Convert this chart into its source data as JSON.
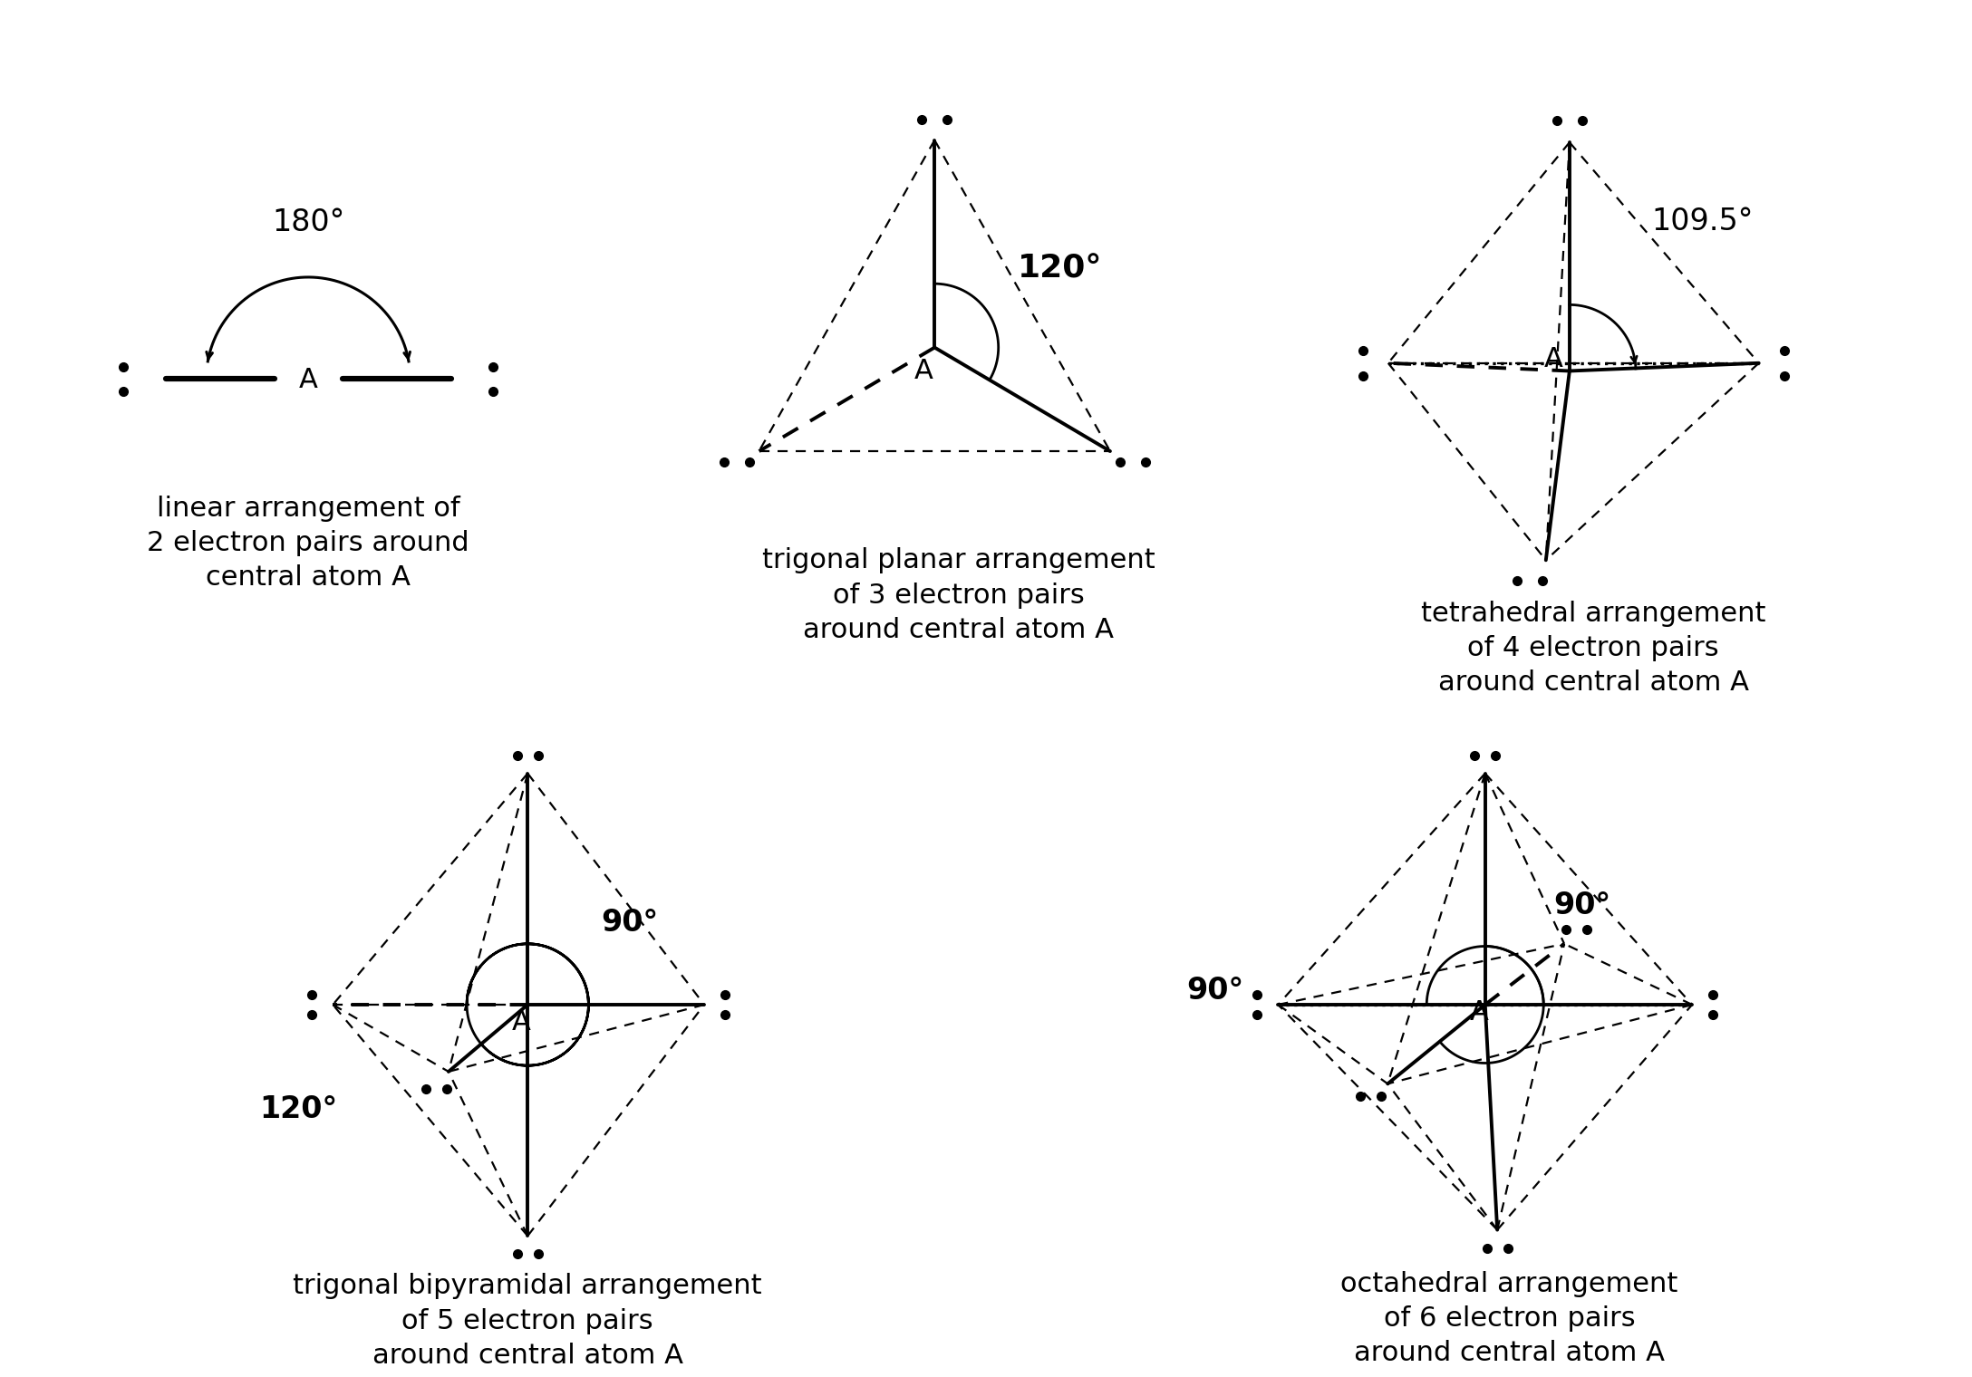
{
  "bg_color": "#ffffff",
  "line_color": "#000000",
  "dot_ms": 7,
  "bond_lw": 2.8,
  "dashed_lw": 1.6,
  "label1": "linear arrangement of\n2 electron pairs around\ncentral atom A",
  "label2": "trigonal planar arrangement\nof 3 electron pairs\naround central atom A",
  "label3": "tetrahedral arrangement\nof 4 electron pairs\naround central atom A",
  "label4": "trigonal bipyramidal arrangement\nof 5 electron pairs\naround central atom A",
  "label5": "octahedral arrangement\nof 6 electron pairs\naround central atom A",
  "angle1": "180°",
  "angle2": "120°",
  "angle3": "109.5°",
  "angle4a": "90°",
  "angle4b": "120°",
  "angle5a": "90°",
  "angle5b": "90°",
  "font_size_label": 22,
  "font_size_angle": 24,
  "font_size_A": 22
}
